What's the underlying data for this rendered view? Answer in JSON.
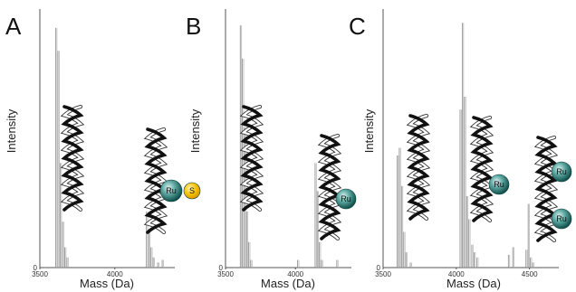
{
  "chart_data": [
    {
      "panel": "A",
      "type": "line",
      "xlabel": "Mass (Da)",
      "ylabel": "Intensity",
      "xlim": [
        3500,
        4400
      ],
      "ylim": [
        0,
        1
      ],
      "x_ticks": [
        3500,
        4000
      ],
      "y_ticks": [
        0
      ],
      "peaks": [
        {
          "x": 3610,
          "y": 0.94
        },
        {
          "x": 3625,
          "y": 0.85
        },
        {
          "x": 3640,
          "y": 0.41
        },
        {
          "x": 3655,
          "y": 0.18
        },
        {
          "x": 3670,
          "y": 0.08
        },
        {
          "x": 3685,
          "y": 0.04
        },
        {
          "x": 4215,
          "y": 0.22
        },
        {
          "x": 4230,
          "y": 0.15
        },
        {
          "x": 4245,
          "y": 0.08
        },
        {
          "x": 4260,
          "y": 0.04
        },
        {
          "x": 4290,
          "y": 0.02
        },
        {
          "x": 4320,
          "y": 0.03
        }
      ],
      "labels": [
        "Ru",
        "S"
      ]
    },
    {
      "panel": "B",
      "type": "line",
      "xlabel": "Mass (Da)",
      "ylabel": "Intensity",
      "xlim": [
        3500,
        4400
      ],
      "ylim": [
        0,
        1
      ],
      "x_ticks": [
        3500,
        4000
      ],
      "y_ticks": [
        0
      ],
      "peaks": [
        {
          "x": 3610,
          "y": 0.95
        },
        {
          "x": 3625,
          "y": 0.82
        },
        {
          "x": 3640,
          "y": 0.55
        },
        {
          "x": 3655,
          "y": 0.22
        },
        {
          "x": 3670,
          "y": 0.1
        },
        {
          "x": 3685,
          "y": 0.03
        },
        {
          "x": 4020,
          "y": 0.03
        },
        {
          "x": 4145,
          "y": 0.41
        },
        {
          "x": 4160,
          "y": 0.3
        },
        {
          "x": 4175,
          "y": 0.1
        },
        {
          "x": 4190,
          "y": 0.03
        },
        {
          "x": 4300,
          "y": 0.03
        }
      ],
      "labels": [
        "Ru"
      ]
    },
    {
      "panel": "C",
      "type": "line",
      "xlabel": "Mass (Da)",
      "ylabel": "Intensity",
      "xlim": [
        3500,
        4700
      ],
      "ylim": [
        0,
        1
      ],
      "x_ticks": [
        3500,
        4000,
        4500
      ],
      "y_ticks": [
        0
      ],
      "peaks": [
        {
          "x": 3600,
          "y": 0.44
        },
        {
          "x": 3615,
          "y": 0.47
        },
        {
          "x": 3630,
          "y": 0.32
        },
        {
          "x": 3645,
          "y": 0.14
        },
        {
          "x": 3660,
          "y": 0.06
        },
        {
          "x": 3690,
          "y": 0.02
        },
        {
          "x": 4030,
          "y": 0.62
        },
        {
          "x": 4045,
          "y": 0.96
        },
        {
          "x": 4060,
          "y": 0.67
        },
        {
          "x": 4075,
          "y": 0.28
        },
        {
          "x": 4090,
          "y": 0.19
        },
        {
          "x": 4110,
          "y": 0.09
        },
        {
          "x": 4125,
          "y": 0.06
        },
        {
          "x": 4145,
          "y": 0.04
        },
        {
          "x": 4360,
          "y": 0.05
        },
        {
          "x": 4390,
          "y": 0.08
        },
        {
          "x": 4480,
          "y": 0.07
        },
        {
          "x": 4495,
          "y": 0.25
        },
        {
          "x": 4510,
          "y": 0.04
        },
        {
          "x": 4525,
          "y": 0.02
        }
      ],
      "labels": [
        "Ru",
        "Ru",
        "Ru"
      ]
    }
  ]
}
